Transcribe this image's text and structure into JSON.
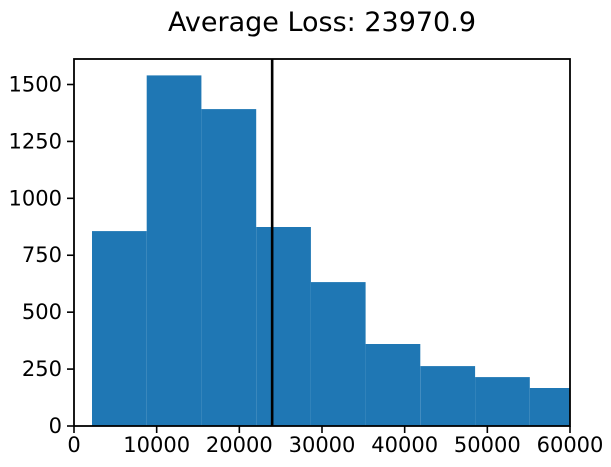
{
  "title": "Average Loss: 23970.9",
  "chart_data": {
    "type": "bar",
    "subtype": "histogram",
    "title": "Average Loss: 23970.9",
    "xlabel": "",
    "ylabel": "",
    "bin_edges": [
      2180,
      8800,
      15420,
      22040,
      28660,
      35280,
      41900,
      48520,
      55140,
      61760
    ],
    "counts": [
      856,
      1540,
      1392,
      874,
      632,
      360,
      263,
      215,
      167
    ],
    "xlim": [
      0,
      60000
    ],
    "ylim": [
      0,
      1612
    ],
    "x_ticks": [
      0,
      10000,
      20000,
      30000,
      40000,
      50000,
      60000
    ],
    "x_tick_labels": [
      "0",
      "10000",
      "20000",
      "30000",
      "40000",
      "50000",
      "60000"
    ],
    "y_ticks": [
      0,
      250,
      500,
      750,
      1000,
      1250,
      1500
    ],
    "y_tick_labels": [
      "0",
      "250",
      "500",
      "750",
      "1000",
      "1250",
      "1500"
    ],
    "vline": {
      "x": 23970.9,
      "color": "#000000",
      "label": "average-loss-marker"
    },
    "bar_color": "#1f77b4",
    "axis_color": "#000000",
    "background_color": "#ffffff",
    "grid": false,
    "legend": null
  }
}
